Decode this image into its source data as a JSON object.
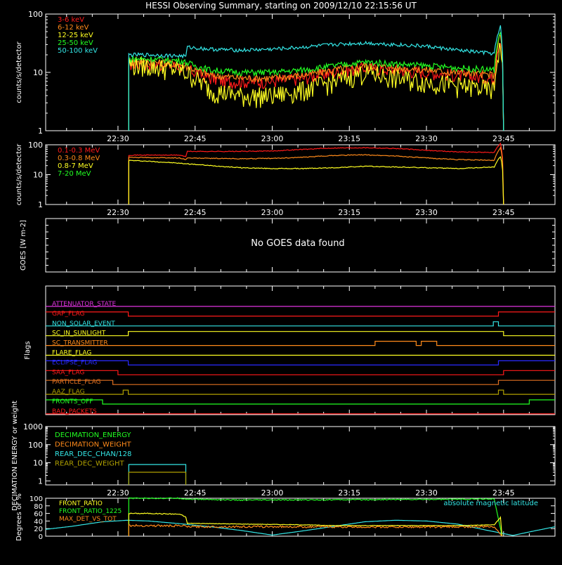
{
  "title": "HESSI Observing Summary, starting on 2009/12/10 22:15:56 UT",
  "time_ticks": [
    "22:30",
    "22:45",
    "23:00",
    "23:15",
    "23:30",
    "23:45"
  ],
  "colors": {
    "bg": "#000000",
    "axis": "#ffffff",
    "red": "#ff1a1a",
    "orange": "#ff8a1a",
    "yellow": "#ffff22",
    "green": "#22ff22",
    "cyan": "#33e6e6",
    "magenta": "#e033e0",
    "blue": "#2a2aff",
    "olive": "#b0a000",
    "darkorange": "#e07020"
  },
  "chart_data": [
    {
      "id": "low_energy",
      "type": "line",
      "title": "",
      "ylabel": "counts/s/detector",
      "yscale": "log",
      "ylim": [
        1,
        100
      ],
      "ytick_labels": [
        "1",
        "10",
        "100"
      ],
      "x_range": [
        "22:15:56",
        "23:55:00"
      ],
      "x_units": "UT time of day",
      "series": [
        {
          "name": "3-6 keV",
          "color": "#ff1a1a",
          "data": [
            [
              22.535,
              1
            ],
            [
              22.535,
              14
            ],
            [
              22.6,
              14
            ],
            [
              22.7,
              13
            ],
            [
              22.75,
              10
            ],
            [
              22.8,
              8
            ],
            [
              22.85,
              7
            ],
            [
              22.9,
              7
            ],
            [
              23.0,
              7
            ],
            [
              23.1,
              8
            ],
            [
              23.2,
              10
            ],
            [
              23.3,
              12
            ],
            [
              23.4,
              11
            ],
            [
              23.5,
              10
            ],
            [
              23.6,
              9
            ],
            [
              23.7,
              8
            ],
            [
              23.72,
              8
            ],
            [
              23.74,
              40
            ],
            [
              23.75,
              1
            ]
          ]
        },
        {
          "name": "6-12 keV",
          "color": "#ff8a1a",
          "data": [
            [
              22.535,
              1
            ],
            [
              22.535,
              15
            ],
            [
              22.6,
              15
            ],
            [
              22.7,
              14
            ],
            [
              22.75,
              11
            ],
            [
              22.8,
              9
            ],
            [
              22.9,
              8
            ],
            [
              23.0,
              8
            ],
            [
              23.1,
              9
            ],
            [
              23.2,
              11
            ],
            [
              23.3,
              13
            ],
            [
              23.4,
              12
            ],
            [
              23.5,
              11
            ],
            [
              23.6,
              10
            ],
            [
              23.72,
              9
            ],
            [
              23.74,
              45
            ],
            [
              23.75,
              1
            ]
          ]
        },
        {
          "name": "12-25 keV",
          "color": "#ffff22",
          "data": [
            [
              22.535,
              1
            ],
            [
              22.535,
              14
            ],
            [
              22.6,
              13
            ],
            [
              22.7,
              11
            ],
            [
              22.75,
              8
            ],
            [
              22.8,
              5
            ],
            [
              22.9,
              4
            ],
            [
              23.0,
              4
            ],
            [
              23.1,
              5
            ],
            [
              23.2,
              7
            ],
            [
              23.3,
              10
            ],
            [
              23.4,
              8
            ],
            [
              23.5,
              7
            ],
            [
              23.6,
              6
            ],
            [
              23.72,
              5
            ],
            [
              23.74,
              30
            ],
            [
              23.75,
              1
            ]
          ]
        },
        {
          "name": "25-50 keV",
          "color": "#22ff22",
          "data": [
            [
              22.535,
              1
            ],
            [
              22.535,
              17
            ],
            [
              22.6,
              17
            ],
            [
              22.7,
              16
            ],
            [
              22.75,
              13
            ],
            [
              22.8,
              11
            ],
            [
              22.9,
              10
            ],
            [
              23.0,
              10
            ],
            [
              23.1,
              11
            ],
            [
              23.2,
              13
            ],
            [
              23.3,
              15
            ],
            [
              23.4,
              14
            ],
            [
              23.5,
              13
            ],
            [
              23.6,
              12
            ],
            [
              23.72,
              11
            ],
            [
              23.74,
              50
            ],
            [
              23.75,
              1
            ]
          ]
        },
        {
          "name": "50-100 keV",
          "color": "#33e6e6",
          "data": [
            [
              22.535,
              1
            ],
            [
              22.535,
              20
            ],
            [
              22.6,
              20
            ],
            [
              22.72,
              19
            ],
            [
              22.725,
              27
            ],
            [
              22.8,
              25
            ],
            [
              22.9,
              24
            ],
            [
              23.0,
              25
            ],
            [
              23.1,
              27
            ],
            [
              23.2,
              30
            ],
            [
              23.3,
              32
            ],
            [
              23.4,
              30
            ],
            [
              23.5,
              28
            ],
            [
              23.6,
              24
            ],
            [
              23.72,
              21
            ],
            [
              23.74,
              60
            ],
            [
              23.75,
              1
            ]
          ]
        }
      ]
    },
    {
      "id": "high_energy",
      "type": "line",
      "title": "",
      "ylabel": "counts/s/detector",
      "yscale": "log",
      "ylim": [
        1,
        100
      ],
      "ytick_labels": [
        "1",
        "10",
        "100"
      ],
      "series": [
        {
          "name": "0.1-0.3 MeV",
          "color": "#ff1a1a",
          "data": [
            [
              22.535,
              1
            ],
            [
              22.535,
              45
            ],
            [
              22.7,
              45
            ],
            [
              22.72,
              40
            ],
            [
              22.725,
              60
            ],
            [
              22.9,
              60
            ],
            [
              23.0,
              62
            ],
            [
              23.1,
              70
            ],
            [
              23.2,
              78
            ],
            [
              23.3,
              80
            ],
            [
              23.4,
              75
            ],
            [
              23.5,
              65
            ],
            [
              23.6,
              58
            ],
            [
              23.72,
              55
            ],
            [
              23.74,
              110
            ],
            [
              23.75,
              1
            ]
          ]
        },
        {
          "name": "0.3-0.8 MeV",
          "color": "#ff8a1a",
          "data": [
            [
              22.535,
              1
            ],
            [
              22.535,
              38
            ],
            [
              22.7,
              36
            ],
            [
              22.72,
              32
            ],
            [
              22.725,
              36
            ],
            [
              22.9,
              34
            ],
            [
              23.0,
              35
            ],
            [
              23.1,
              38
            ],
            [
              23.2,
              44
            ],
            [
              23.3,
              46
            ],
            [
              23.4,
              42
            ],
            [
              23.5,
              36
            ],
            [
              23.6,
              32
            ],
            [
              23.72,
              30
            ],
            [
              23.74,
              80
            ],
            [
              23.75,
              1
            ]
          ]
        },
        {
          "name": "0.8-7 MeV",
          "color": "#ffff22",
          "data": [
            [
              22.535,
              1
            ],
            [
              22.535,
              30
            ],
            [
              22.6,
              28
            ],
            [
              22.7,
              24
            ],
            [
              22.8,
              20
            ],
            [
              22.9,
              17
            ],
            [
              23.0,
              16
            ],
            [
              23.1,
              16
            ],
            [
              23.2,
              17
            ],
            [
              23.3,
              19
            ],
            [
              23.4,
              18
            ],
            [
              23.5,
              17
            ],
            [
              23.6,
              16
            ],
            [
              23.72,
              18
            ],
            [
              23.74,
              40
            ],
            [
              23.75,
              1
            ]
          ]
        },
        {
          "name": "7-20 MeV",
          "color": "#22ff22",
          "data": []
        }
      ]
    },
    {
      "id": "goes",
      "type": "line",
      "ylabel": "GOES [W m-2]",
      "message": "No GOES data found",
      "series": []
    },
    {
      "id": "flags",
      "type": "line",
      "ylabel": "Flags",
      "series": [
        {
          "name": "ATTENUATOR_STATE",
          "color": "#e033e0",
          "on": []
        },
        {
          "name": "GAP_FLAG",
          "color": "#ff1a1a",
          "on": [
            [
              "22:15:56",
              "22:32"
            ],
            [
              "23:44",
              "23:55"
            ]
          ]
        },
        {
          "name": "NON_SOLAR_EVENT",
          "color": "#33e6e6",
          "on": [
            [
              "23:43",
              "23:44"
            ]
          ]
        },
        {
          "name": "SC_IN_SUNLIGHT",
          "color": "#ffff22",
          "on": [
            [
              "22:32",
              "23:45"
            ]
          ]
        },
        {
          "name": "SC_TRANSMITTER",
          "color": "#ff8a1a",
          "on": [
            [
              "23:20",
              "23:28"
            ],
            [
              "23:29",
              "23:32"
            ]
          ]
        },
        {
          "name": "FLARE_FLAG",
          "color": "#ffff22",
          "on": []
        },
        {
          "name": "ECLIPSE_FLAG",
          "color": "#2a2aff",
          "on": [
            [
              "22:15:56",
              "22:32"
            ],
            [
              "23:44",
              "23:55"
            ]
          ]
        },
        {
          "name": "SAA_FLAG",
          "color": "#ff1a1a",
          "on": [
            [
              "22:15:56",
              "22:30"
            ],
            [
              "23:45",
              "23:55"
            ]
          ]
        },
        {
          "name": "PARTICLE_FLAG",
          "color": "#e07020",
          "on": [
            [
              "22:15:56",
              "22:29"
            ],
            [
              "23:44",
              "23:55"
            ]
          ]
        },
        {
          "name": "AAZ_FLAG",
          "color": "#b0a000",
          "on": [
            [
              "22:31",
              "22:32"
            ],
            [
              "23:44",
              "23:45"
            ]
          ]
        },
        {
          "name": "FRONTS_OFF",
          "color": "#22ff22",
          "on": [
            [
              "22:15:56",
              "22:27"
            ],
            [
              "23:50",
              "23:55"
            ]
          ]
        },
        {
          "name": "BAD_PACKETS",
          "color": "#ff1a1a",
          "on": []
        }
      ]
    },
    {
      "id": "decimation",
      "type": "line",
      "ylabel": "DECIMATION ENERGY or weight",
      "yscale": "log",
      "ylim": [
        0.6,
        1000
      ],
      "ytick_labels": [
        "1",
        "10",
        "100",
        "1000"
      ],
      "series": [
        {
          "name": "DECIMATION_ENERGY",
          "color": "#22ff22",
          "data": []
        },
        {
          "name": "DECIMATION_WEIGHT",
          "color": "#ff8a1a",
          "data": []
        },
        {
          "name": "REAR_DEC_CHAN/128",
          "color": "#33e6e6",
          "data": [
            [
              22.535,
              0.6
            ],
            [
              22.535,
              8
            ],
            [
              22.72,
              8
            ],
            [
              22.72,
              0.6
            ]
          ]
        },
        {
          "name": "REAR_DEC_WEIGHT",
          "color": "#b0a000",
          "data": [
            [
              22.535,
              0.6
            ],
            [
              22.535,
              3
            ],
            [
              22.72,
              3
            ],
            [
              22.72,
              0.6
            ]
          ]
        }
      ]
    },
    {
      "id": "ratios",
      "type": "line",
      "ylabel": "Degrees or %",
      "ylim": [
        0,
        100
      ],
      "ytick_labels": [
        "0",
        "20",
        "40",
        "60",
        "80",
        "100"
      ],
      "series": [
        {
          "name": "FRONT_RATIO",
          "color": "#ffff22",
          "data": [
            [
              22.535,
              0
            ],
            [
              22.535,
              60
            ],
            [
              22.6,
              60
            ],
            [
              22.7,
              58
            ],
            [
              22.72,
              50
            ],
            [
              22.725,
              34
            ],
            [
              22.9,
              32
            ],
            [
              23.1,
              30
            ],
            [
              23.2,
              28
            ],
            [
              23.4,
              28
            ],
            [
              23.6,
              28
            ],
            [
              23.72,
              30
            ],
            [
              23.74,
              50
            ],
            [
              23.745,
              0
            ]
          ]
        },
        {
          "name": "FRONT_RATIO_1225",
          "color": "#22ff22",
          "data": [
            [
              22.535,
              0
            ],
            [
              22.535,
              100
            ],
            [
              22.7,
              100
            ],
            [
              22.72,
              98
            ],
            [
              22.9,
              95
            ],
            [
              23.2,
              96
            ],
            [
              23.5,
              97
            ],
            [
              23.72,
              98
            ],
            [
              23.745,
              0
            ]
          ]
        },
        {
          "name": "MAX_DET_VS_TOT",
          "color": "#ff8a1a",
          "data": [
            [
              22.535,
              0
            ],
            [
              22.535,
              28
            ],
            [
              22.72,
              27
            ],
            [
              22.725,
              25
            ],
            [
              23.0,
              25
            ],
            [
              23.4,
              24
            ],
            [
              23.72,
              25
            ],
            [
              23.745,
              0
            ]
          ]
        },
        {
          "name": "absolute magnetic latitude",
          "color": "#33e6e6",
          "data": [
            [
              22.265,
              18
            ],
            [
              22.35,
              26
            ],
            [
              22.45,
              38
            ],
            [
              22.53,
              42
            ],
            [
              22.6,
              40
            ],
            [
              22.7,
              33
            ],
            [
              22.8,
              25
            ],
            [
              22.9,
              15
            ],
            [
              23.0,
              3
            ],
            [
              23.1,
              14
            ],
            [
              23.2,
              26
            ],
            [
              23.3,
              38
            ],
            [
              23.4,
              42
            ],
            [
              23.5,
              40
            ],
            [
              23.6,
              32
            ],
            [
              23.7,
              15
            ],
            [
              23.78,
              2
            ],
            [
              23.85,
              14
            ],
            [
              23.917,
              25
            ]
          ]
        }
      ]
    }
  ]
}
